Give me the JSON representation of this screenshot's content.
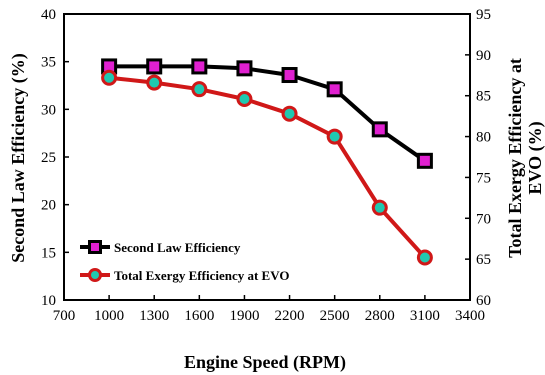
{
  "chart_data": {
    "type": "line",
    "xlabel": "Engine Speed (RPM)",
    "ylabel": "Second Law Efficiency (%)",
    "y2label": "Total Exergy Efficiency at EVO (%)",
    "xlim": [
      700,
      3400
    ],
    "xticks": [
      700,
      1000,
      1300,
      1600,
      1900,
      2200,
      2500,
      2800,
      3100,
      3400
    ],
    "ylim": [
      10,
      40
    ],
    "yticks": [
      10,
      15,
      20,
      25,
      30,
      35,
      40
    ],
    "y2lim": [
      60,
      95
    ],
    "y2ticks": [
      60,
      65,
      70,
      75,
      80,
      85,
      90,
      95
    ],
    "grid": false,
    "legend_position": "bottom-left",
    "x": [
      1000,
      1300,
      1600,
      1900,
      2200,
      2500,
      2800,
      3100
    ],
    "series": [
      {
        "name": "Second Law Efficiency",
        "axis": "left",
        "values": [
          34.5,
          34.5,
          34.5,
          34.3,
          33.6,
          32.1,
          27.9,
          24.6
        ],
        "color": "#000000",
        "marker_color": "#e020d0"
      },
      {
        "name": "Total Exergy Efficiency at EVO",
        "axis": "right",
        "values": [
          87.2,
          86.6,
          85.8,
          84.6,
          82.8,
          80.0,
          71.3,
          65.2
        ],
        "color": "#d01818",
        "marker_color": "#20c8b0"
      }
    ]
  }
}
